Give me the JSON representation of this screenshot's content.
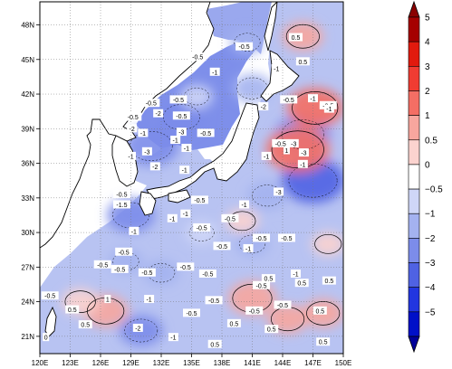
{
  "chart_data": {
    "type": "heatmap",
    "projection": "lat-lon map",
    "title": "",
    "xlabel": "",
    "ylabel": "",
    "xlim": [
      120,
      150
    ],
    "ylim": [
      19.5,
      50
    ],
    "x_ticks": [
      {
        "value": 120,
        "label": "120E"
      },
      {
        "value": 123,
        "label": "123E"
      },
      {
        "value": 126,
        "label": "126E"
      },
      {
        "value": 129,
        "label": "129E"
      },
      {
        "value": 132,
        "label": "132E"
      },
      {
        "value": 135,
        "label": "135E"
      },
      {
        "value": 138,
        "label": "138E"
      },
      {
        "value": 141,
        "label": "141E"
      },
      {
        "value": 144,
        "label": "144E"
      },
      {
        "value": 147,
        "label": "147E"
      },
      {
        "value": 150,
        "label": "150E"
      }
    ],
    "y_ticks": [
      {
        "value": 21,
        "label": "21N"
      },
      {
        "value": 24,
        "label": "24N"
      },
      {
        "value": 27,
        "label": "27N"
      },
      {
        "value": 30,
        "label": "30N"
      },
      {
        "value": 33,
        "label": "33N"
      },
      {
        "value": 36,
        "label": "36N"
      },
      {
        "value": 39,
        "label": "39N"
      },
      {
        "value": 42,
        "label": "42N"
      },
      {
        "value": 45,
        "label": "45N"
      },
      {
        "value": 48,
        "label": "48N"
      }
    ],
    "grid": true,
    "colorbar": {
      "orientation": "vertical",
      "placement": "right",
      "levels": [
        5,
        4,
        3,
        2,
        1,
        0.5,
        0,
        -0.5,
        -1,
        -2,
        -3,
        -4,
        -5
      ],
      "labels": [
        "5",
        "4",
        "3",
        "2",
        "1",
        "0.5",
        "0",
        "−0.5",
        "−1",
        "−2",
        "−3",
        "−4",
        "−5"
      ],
      "colors": [
        "#a50000",
        "#e11a0e",
        "#f03c32",
        "#f46e64",
        "#f7a69e",
        "#fbd3cf",
        "#ffffff",
        "#cfd6f7",
        "#a4b2f0",
        "#7c8cea",
        "#4f62e3",
        "#2236e0",
        "#0010c8"
      ],
      "extend_top_color": "#8a0000",
      "extend_bottom_color": "#00009a"
    },
    "contour_labels": [
      {
        "lon": 145.3,
        "lat": 46.9,
        "text": "0.5"
      },
      {
        "lon": 140.2,
        "lat": 46.1,
        "text": "-0.5"
      },
      {
        "lon": 135.6,
        "lat": 45.2,
        "text": "-0.5"
      },
      {
        "lon": 146.0,
        "lat": 44.8,
        "text": "0.5"
      },
      {
        "lon": 137.3,
        "lat": 43.9,
        "text": "-1"
      },
      {
        "lon": 143.4,
        "lat": 44.2,
        "text": "-1"
      },
      {
        "lon": 147.0,
        "lat": 41.6,
        "text": "-1"
      },
      {
        "lon": 144.6,
        "lat": 41.5,
        "text": "-0.5"
      },
      {
        "lon": 148.5,
        "lat": 41.0,
        "text": "-0.5"
      },
      {
        "lon": 148.6,
        "lat": 40.7,
        "text": "-1"
      },
      {
        "lon": 142.1,
        "lat": 40.9,
        "text": "-2"
      },
      {
        "lon": 131.0,
        "lat": 41.2,
        "text": "-0.5"
      },
      {
        "lon": 133.7,
        "lat": 41.5,
        "text": "-0.5"
      },
      {
        "lon": 129.2,
        "lat": 40.0,
        "text": "-0.5"
      },
      {
        "lon": 131.7,
        "lat": 40.3,
        "text": "-2"
      },
      {
        "lon": 134.0,
        "lat": 40.1,
        "text": "-0.5"
      },
      {
        "lon": 129.1,
        "lat": 39.0,
        "text": "-2"
      },
      {
        "lon": 130.2,
        "lat": 38.6,
        "text": "-1"
      },
      {
        "lon": 134.0,
        "lat": 38.7,
        "text": "-3"
      },
      {
        "lon": 136.4,
        "lat": 38.6,
        "text": "-0.5"
      },
      {
        "lon": 133.4,
        "lat": 38.0,
        "text": "-1"
      },
      {
        "lon": 134.5,
        "lat": 37.3,
        "text": "-1"
      },
      {
        "lon": 130.6,
        "lat": 37.0,
        "text": "-3"
      },
      {
        "lon": 129.0,
        "lat": 36.6,
        "text": "-1"
      },
      {
        "lon": 131.4,
        "lat": 35.7,
        "text": "-2"
      },
      {
        "lon": 134.3,
        "lat": 35.4,
        "text": "-1"
      },
      {
        "lon": 143.8,
        "lat": 37.7,
        "text": "-0.5"
      },
      {
        "lon": 145.1,
        "lat": 37.7,
        "text": "-3"
      },
      {
        "lon": 142.4,
        "lat": 36.6,
        "text": "-1"
      },
      {
        "lon": 144.4,
        "lat": 37.1,
        "text": "1"
      },
      {
        "lon": 146.1,
        "lat": 36.9,
        "text": "-3"
      },
      {
        "lon": 146.0,
        "lat": 35.9,
        "text": "-1"
      },
      {
        "lon": 143.6,
        "lat": 33.5,
        "text": "-3"
      },
      {
        "lon": 128.1,
        "lat": 33.3,
        "text": "-0.5"
      },
      {
        "lon": 128.1,
        "lat": 32.4,
        "text": "-1.5"
      },
      {
        "lon": 135.8,
        "lat": 32.8,
        "text": "-0.5"
      },
      {
        "lon": 140.2,
        "lat": 32.4,
        "text": "-1"
      },
      {
        "lon": 134.4,
        "lat": 31.6,
        "text": "-1"
      },
      {
        "lon": 133.1,
        "lat": 31.2,
        "text": "-1"
      },
      {
        "lon": 136.0,
        "lat": 30.4,
        "text": "-0.5"
      },
      {
        "lon": 138.8,
        "lat": 31.2,
        "text": "-0.5"
      },
      {
        "lon": 129.3,
        "lat": 30.1,
        "text": "-1"
      },
      {
        "lon": 141.9,
        "lat": 29.5,
        "text": "-0.5"
      },
      {
        "lon": 144.4,
        "lat": 29.5,
        "text": "-0.5"
      },
      {
        "lon": 138.0,
        "lat": 28.8,
        "text": "-0.5"
      },
      {
        "lon": 128.3,
        "lat": 28.3,
        "text": "-0.5"
      },
      {
        "lon": 126.2,
        "lat": 27.2,
        "text": "-0.5"
      },
      {
        "lon": 140.6,
        "lat": 28.6,
        "text": "-1"
      },
      {
        "lon": 127.9,
        "lat": 26.8,
        "text": "-0.5"
      },
      {
        "lon": 130.6,
        "lat": 26.5,
        "text": "-0.5"
      },
      {
        "lon": 134.4,
        "lat": 27.0,
        "text": "-0.5"
      },
      {
        "lon": 136.6,
        "lat": 26.4,
        "text": "-0.5"
      },
      {
        "lon": 137.2,
        "lat": 24.1,
        "text": "-0.5"
      },
      {
        "lon": 141.9,
        "lat": 25.4,
        "text": "-0.5"
      },
      {
        "lon": 142.6,
        "lat": 26.0,
        "text": "0.5"
      },
      {
        "lon": 145.9,
        "lat": 25.6,
        "text": "0.5"
      },
      {
        "lon": 145.3,
        "lat": 26.4,
        "text": "-1"
      },
      {
        "lon": 148.6,
        "lat": 25.8,
        "text": "0.5"
      },
      {
        "lon": 121.0,
        "lat": 24.5,
        "text": "-0.5"
      },
      {
        "lon": 123.2,
        "lat": 23.3,
        "text": "0.5"
      },
      {
        "lon": 126.7,
        "lat": 24.2,
        "text": "1"
      },
      {
        "lon": 130.8,
        "lat": 24.2,
        "text": "-1"
      },
      {
        "lon": 135.0,
        "lat": 23.0,
        "text": "-0.5"
      },
      {
        "lon": 141.2,
        "lat": 23.2,
        "text": "-0.5"
      },
      {
        "lon": 144.0,
        "lat": 23.7,
        "text": "-0.5"
      },
      {
        "lon": 147.7,
        "lat": 23.2,
        "text": "0.5"
      },
      {
        "lon": 124.5,
        "lat": 22.0,
        "text": "0.5"
      },
      {
        "lon": 129.7,
        "lat": 21.7,
        "text": "-2"
      },
      {
        "lon": 133.2,
        "lat": 20.9,
        "text": "-1"
      },
      {
        "lon": 139.2,
        "lat": 22.1,
        "text": "0.5"
      },
      {
        "lon": 142.9,
        "lat": 21.6,
        "text": "0.5"
      },
      {
        "lon": 137.3,
        "lat": 20.3,
        "text": "0.5"
      },
      {
        "lon": 120.6,
        "lat": 20.9,
        "text": "0"
      },
      {
        "lon": 148.0,
        "lat": 20.5,
        "text": "0.5"
      }
    ],
    "features": {
      "negative_zones": [
        {
          "lon": 134.0,
          "lat": 40.0,
          "value": -1.5
        },
        {
          "lon": 131.0,
          "lat": 37.5,
          "value": -2
        },
        {
          "lon": 141.0,
          "lat": 42.5,
          "value": -1
        },
        {
          "lon": 146.0,
          "lat": 38.5,
          "value": -2
        },
        {
          "lon": 147.0,
          "lat": 34.5,
          "value": -2.5
        },
        {
          "lon": 142.5,
          "lat": 33.2,
          "value": -1
        },
        {
          "lon": 129.0,
          "lat": 31.5,
          "value": -1.5
        },
        {
          "lon": 136.0,
          "lat": 30.0,
          "value": -0.5
        },
        {
          "lon": 141.0,
          "lat": 29.0,
          "value": -0.6
        },
        {
          "lon": 128.5,
          "lat": 27.5,
          "value": -0.6
        },
        {
          "lon": 132.0,
          "lat": 26.5,
          "value": -0.7
        },
        {
          "lon": 130.0,
          "lat": 21.5,
          "value": -1.2
        },
        {
          "lon": 135.5,
          "lat": 41.8,
          "value": -0.5
        },
        {
          "lon": 140.5,
          "lat": 46.5,
          "value": -0.6
        }
      ],
      "positive_zones": [
        {
          "lon": 145.5,
          "lat": 37.2,
          "value": 2.5
        },
        {
          "lon": 147.2,
          "lat": 40.8,
          "value": 2
        },
        {
          "lon": 146.0,
          "lat": 47.0,
          "value": 1
        },
        {
          "lon": 141.0,
          "lat": 24.3,
          "value": 1.5
        },
        {
          "lon": 126.5,
          "lat": 23.2,
          "value": 1.3
        },
        {
          "lon": 144.5,
          "lat": 22.5,
          "value": 1
        },
        {
          "lon": 148.0,
          "lat": 23.0,
          "value": 1
        },
        {
          "lon": 148.5,
          "lat": 29.0,
          "value": 0.5
        },
        {
          "lon": 140.0,
          "lat": 31.0,
          "value": 0.5
        },
        {
          "lon": 124.0,
          "lat": 24.0,
          "value": 0.8
        }
      ]
    }
  }
}
